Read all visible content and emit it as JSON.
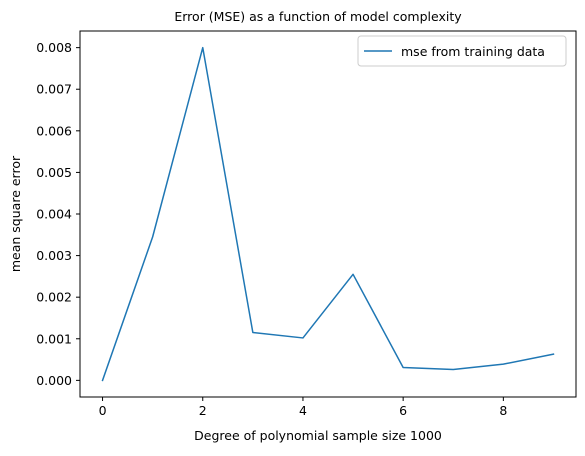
{
  "chart_data": {
    "type": "line",
    "title": "Error (MSE) as a function of model complexity",
    "xlabel": "Degree of polynomial sample size 1000",
    "ylabel": "mean square error",
    "x": [
      0,
      1,
      2,
      3,
      4,
      5,
      6,
      7,
      8,
      9
    ],
    "series": [
      {
        "name": "mse from training data",
        "color": "#1f77b4",
        "values": [
          0.0,
          0.00345,
          0.008,
          0.00115,
          0.00102,
          0.00255,
          0.00031,
          0.00026,
          0.00039,
          0.00063
        ]
      }
    ],
    "xlim": [
      -0.45,
      9.45
    ],
    "ylim": [
      -0.0004,
      0.0084
    ],
    "x_ticks": [
      0,
      2,
      4,
      6,
      8
    ],
    "x_tick_labels": [
      "0",
      "2",
      "4",
      "6",
      "8"
    ],
    "y_ticks": [
      0.0,
      0.001,
      0.002,
      0.003,
      0.004,
      0.005,
      0.006,
      0.007,
      0.008
    ],
    "y_tick_labels": [
      "0.000",
      "0.001",
      "0.002",
      "0.003",
      "0.004",
      "0.005",
      "0.006",
      "0.007",
      "0.008"
    ],
    "grid": false,
    "legend_position": "upper right"
  }
}
